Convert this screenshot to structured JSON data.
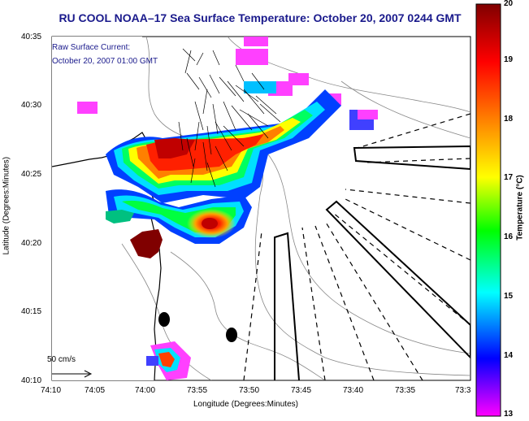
{
  "title": "RU COOL  NOAA–17  Sea Surface Temperature:  October 20, 2007 0244 GMT",
  "annotation": {
    "line1": "Raw Surface Current:",
    "line2": "October 20, 2007 01:00 GMT"
  },
  "scale_label": "50 cm/s",
  "axes": {
    "xlabel": "Longitude (Degrees:Minutes)",
    "ylabel": "Latitude (Degrees:Minutes)",
    "x_ticks": [
      "74:10",
      "74:05",
      "74:00",
      "73:55",
      "73:50",
      "73:45",
      "73:40",
      "73:35",
      "73:3"
    ],
    "y_ticks": [
      "40:35",
      "40:30",
      "40:25",
      "40:20",
      "40:15",
      "40:10"
    ]
  },
  "colorbar": {
    "title": "Temperature (°C)",
    "ticks": [
      "20",
      "19",
      "18",
      "17",
      "16",
      "15",
      "14",
      "13"
    ],
    "min": 13,
    "max": 20,
    "colors": [
      "#ff00ff",
      "#0000ff",
      "#00ffff",
      "#00ff00",
      "#ffff00",
      "#ff8000",
      "#ff0000",
      "#800000"
    ]
  }
}
